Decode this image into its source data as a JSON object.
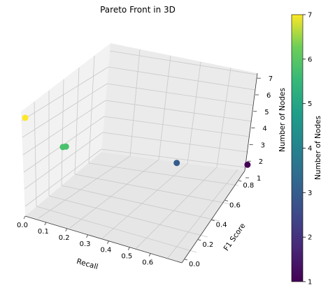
{
  "chart_data": {
    "type": "scatter",
    "title": "Pareto Front in 3D",
    "xlabel": "Recall",
    "ylabel": "F1 Score",
    "zlabel": "Number of Nodes",
    "colorbar_label": "Number of Nodes",
    "colormap": "viridis",
    "x_ticks": [
      "0.0",
      "0.1",
      "0.2",
      "0.3",
      "0.4",
      "0.5",
      "0.6"
    ],
    "y_ticks": [
      "0.0",
      "0.2",
      "0.4",
      "0.6",
      "0.8"
    ],
    "z_ticks": [
      "1",
      "2",
      "3",
      "4",
      "5",
      "6",
      "7"
    ],
    "colorbar_ticks": [
      "1",
      "2",
      "3",
      "4",
      "5",
      "6",
      "7"
    ],
    "points": [
      {
        "recall": 0.0,
        "f1": 0.0,
        "nodes": 7
      },
      {
        "recall": 0.13,
        "f1": 0.1,
        "nodes": 5
      },
      {
        "recall": 0.14,
        "f1": 0.11,
        "nodes": 5
      },
      {
        "recall": 0.5,
        "f1": 0.47,
        "nodes": 3
      },
      {
        "recall": 0.68,
        "f1": 0.85,
        "nodes": 1
      }
    ],
    "colors": {
      "n7": "#fde725",
      "n5": "#35b779",
      "n3": "#31688e",
      "n1": "#440154"
    }
  }
}
